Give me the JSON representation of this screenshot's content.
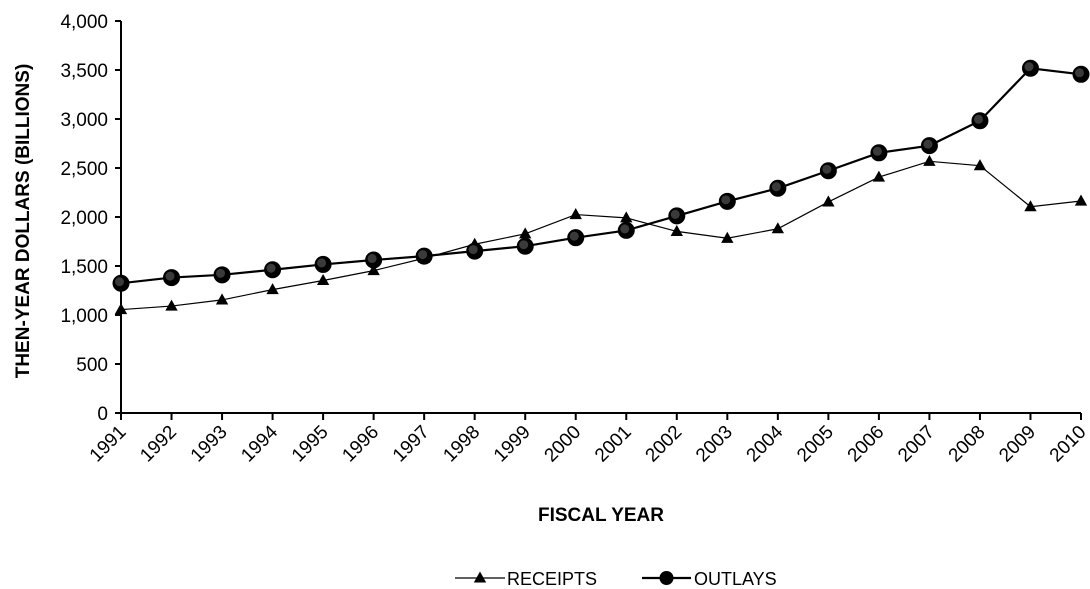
{
  "chart_data": {
    "type": "line",
    "title": "",
    "xlabel": "FISCAL YEAR",
    "ylabel": "THEN-YEAR DOLLARS (BILLIONS)",
    "ylim": [
      0,
      4000
    ],
    "yticks": [
      0,
      500,
      1000,
      1500,
      2000,
      2500,
      3000,
      3500,
      4000
    ],
    "ytick_labels": [
      "0",
      "500",
      "1,000",
      "1,500",
      "2,000",
      "2,500",
      "3,000",
      "3,500",
      "4,000"
    ],
    "x": [
      "1991",
      "1992",
      "1993",
      "1994",
      "1995",
      "1996",
      "1997",
      "1998",
      "1999",
      "2000",
      "2001",
      "2002",
      "2003",
      "2004",
      "2005",
      "2006",
      "2007",
      "2008",
      "2009",
      "2010"
    ],
    "grid": false,
    "legend_position": "bottom-center",
    "series": [
      {
        "name": "RECEIPTS",
        "marker": "triangle",
        "values": [
          1055,
          1091,
          1154,
          1259,
          1352,
          1453,
          1579,
          1722,
          1828,
          2025,
          1991,
          1853,
          1783,
          1880,
          2154,
          2407,
          2568,
          2524,
          2105,
          2163
        ]
      },
      {
        "name": "OUTLAYS",
        "marker": "circle",
        "values": [
          1324,
          1382,
          1410,
          1462,
          1516,
          1561,
          1601,
          1652,
          1702,
          1789,
          1863,
          2011,
          2160,
          2293,
          2472,
          2655,
          2728,
          2982,
          3518,
          3456
        ]
      }
    ]
  }
}
